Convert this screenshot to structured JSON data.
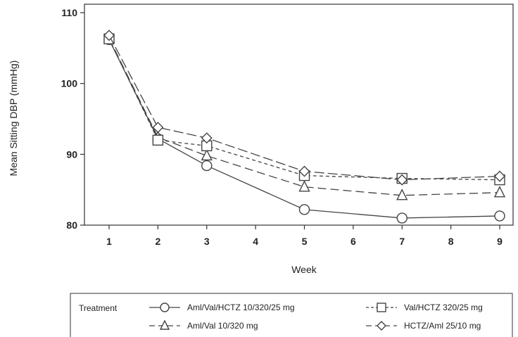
{
  "chart_data": {
    "type": "line",
    "title": "",
    "xlabel": "Week",
    "ylabel": "Mean Sitting DBP (mmHg)",
    "ylim": [
      80,
      110
    ],
    "xlim": [
      1,
      9
    ],
    "x_ticks": [
      1,
      2,
      3,
      4,
      5,
      6,
      7,
      8,
      9
    ],
    "y_ticks": [
      80,
      90,
      100,
      110
    ],
    "grid": false,
    "legend": {
      "title": "Treatment",
      "placement": "bottom"
    },
    "series": [
      {
        "name": "Aml/Val/HCTZ 10/320/25  mg",
        "marker": "circle",
        "dash": "solid",
        "x": [
          1,
          2,
          3,
          5,
          7,
          9
        ],
        "values": [
          106.2,
          92.2,
          88.4,
          82.2,
          81.0,
          81.3
        ]
      },
      {
        "name": "Aml/Val 10/320  mg",
        "marker": "triangle",
        "dash": "long-dash",
        "x": [
          1,
          2,
          3,
          5,
          7,
          9
        ],
        "values": [
          106.4,
          92.4,
          89.8,
          85.4,
          84.2,
          84.6
        ]
      },
      {
        "name": "Val/HCTZ 320/25 mg",
        "marker": "square",
        "dash": "short-dash",
        "x": [
          1,
          2,
          3,
          5,
          7,
          9
        ],
        "values": [
          106.3,
          92.0,
          91.2,
          87.0,
          86.6,
          86.4
        ]
      },
      {
        "name": "HCTZ/Aml 25/10 mg",
        "marker": "diamond",
        "dash": "dash-long",
        "x": [
          1,
          2,
          3,
          5,
          7,
          9
        ],
        "values": [
          106.8,
          93.8,
          92.3,
          87.6,
          86.4,
          86.9
        ]
      }
    ]
  }
}
